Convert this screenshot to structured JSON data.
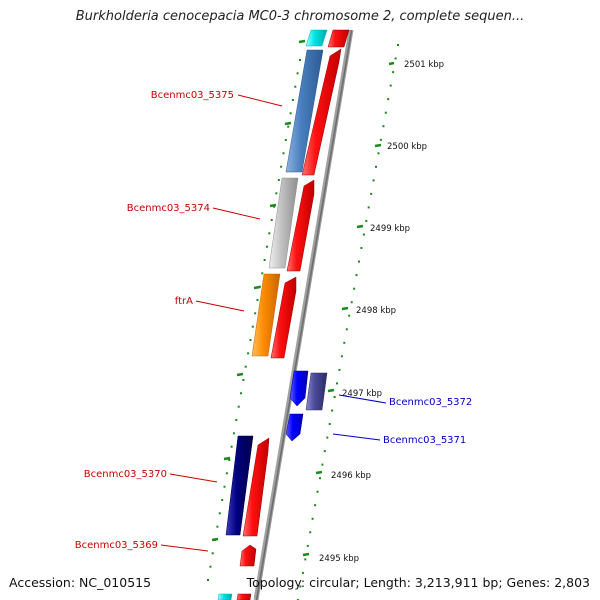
{
  "title": "Burkholderia cenocepacia MC0-3 chromosome 2, complete sequen...",
  "footer": {
    "accession": "Accession: NC_010515",
    "summary": "Topology: circular; Length: 3,213,911 bp; Genes: 2,803"
  },
  "scale_labels": [
    "2501 kbp",
    "2500 kbp",
    "2499 kbp",
    "2498 kbp",
    "2497 kbp",
    "2496 kbp",
    "2495 kbp"
  ],
  "gene_labels": [
    {
      "text": "Bcenmc03_5375",
      "color": "#cc0000"
    },
    {
      "text": "Bcenmc03_5374",
      "color": "#cc0000"
    },
    {
      "text": "ftrA",
      "color": "#cc0000"
    },
    {
      "text": "Bcenmc03_5372",
      "color": "#0000cc"
    },
    {
      "text": "Bcenmc03_5371",
      "color": "#0000cc"
    },
    {
      "text": "Bcenmc03_5370",
      "color": "#cc0000"
    },
    {
      "text": "Bcenmc03_5369",
      "color": "#cc0000"
    }
  ],
  "colors": {
    "forward_strand": "#ff0000",
    "reverse_strand": "#0000ff",
    "backbone": "#888888",
    "tick": "#1a8a1a",
    "gene_5375": "#4a7fbf",
    "gene_5374": "#c0c0c0",
    "gene_ftrA": "#ff8c00",
    "gene_5370": "#000080",
    "gene_5372": "#4b4b9a",
    "gene_top": "#00e5e5"
  }
}
